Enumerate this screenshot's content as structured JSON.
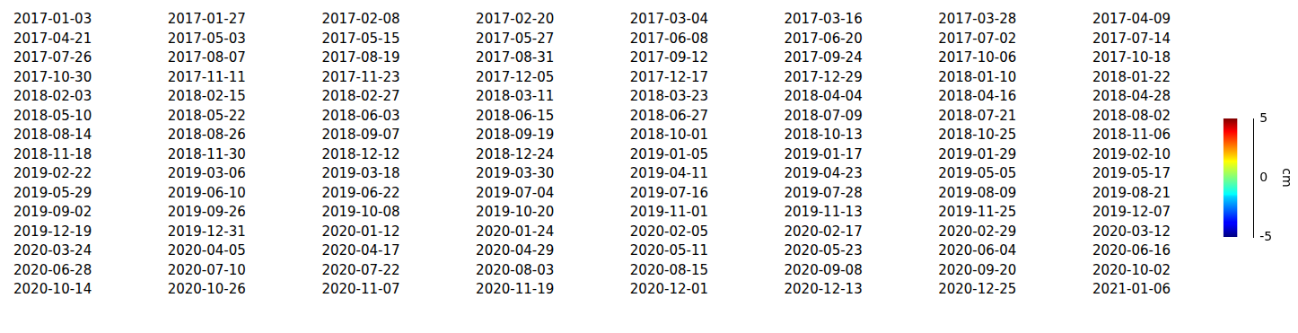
{
  "chart_data": {
    "type": "heatmap",
    "panel_titles": [
      "2017-01-03",
      "2017-01-27",
      "2017-02-08",
      "2017-02-20",
      "2017-03-04",
      "2017-03-16",
      "2017-03-28",
      "2017-04-09",
      "2017-04-21",
      "2017-05-03",
      "2017-05-15",
      "2017-05-27",
      "2017-06-08",
      "2017-06-20",
      "2017-07-02",
      "2017-07-14",
      "2017-07-26",
      "2017-08-07",
      "2017-08-19",
      "2017-08-31",
      "2017-09-12",
      "2017-09-24",
      "2017-10-06",
      "2017-10-18",
      "2017-10-30",
      "2017-11-11",
      "2017-11-23",
      "2017-12-05",
      "2017-12-17",
      "2017-12-29",
      "2018-01-10",
      "2018-01-22",
      "2018-02-03",
      "2018-02-15",
      "2018-02-27",
      "2018-03-11",
      "2018-03-23",
      "2018-04-04",
      "2018-04-16",
      "2018-04-28",
      "2018-05-10",
      "2018-05-22",
      "2018-06-03",
      "2018-06-15",
      "2018-06-27",
      "2018-07-09",
      "2018-07-21",
      "2018-08-02",
      "2018-08-14",
      "2018-08-26",
      "2018-09-07",
      "2018-09-19",
      "2018-10-01",
      "2018-10-13",
      "2018-10-25",
      "2018-11-06",
      "2018-11-18",
      "2018-11-30",
      "2018-12-12",
      "2018-12-24",
      "2019-01-05",
      "2019-01-17",
      "2019-01-29",
      "2019-02-10",
      "2019-02-22",
      "2019-03-06",
      "2019-03-18",
      "2019-03-30",
      "2019-04-11",
      "2019-04-23",
      "2019-05-05",
      "2019-05-17",
      "2019-05-29",
      "2019-06-10",
      "2019-06-22",
      "2019-07-04",
      "2019-07-16",
      "2019-07-28",
      "2019-08-09",
      "2019-08-21",
      "2019-09-02",
      "2019-09-26",
      "2019-10-08",
      "2019-10-20",
      "2019-11-01",
      "2019-11-13",
      "2019-11-25",
      "2019-12-07",
      "2019-12-19",
      "2019-12-31",
      "2020-01-12",
      "2020-01-24",
      "2020-02-05",
      "2020-02-17",
      "2020-02-29",
      "2020-03-12",
      "2020-03-24",
      "2020-04-05",
      "2020-04-17",
      "2020-04-29",
      "2020-05-11",
      "2020-05-23",
      "2020-06-04",
      "2020-06-16",
      "2020-06-28",
      "2020-07-10",
      "2020-07-22",
      "2020-08-03",
      "2020-08-15",
      "2020-09-08",
      "2020-09-20",
      "2020-10-02",
      "2020-10-14",
      "2020-10-26",
      "2020-11-07",
      "2020-11-19",
      "2020-12-01",
      "2020-12-13",
      "2020-12-25",
      "2021-01-06"
    ],
    "colorbar": {
      "lim": [
        -5,
        5
      ],
      "ticks": [
        -5,
        0,
        5
      ],
      "label": "cm",
      "color": "jet"
    }
  }
}
